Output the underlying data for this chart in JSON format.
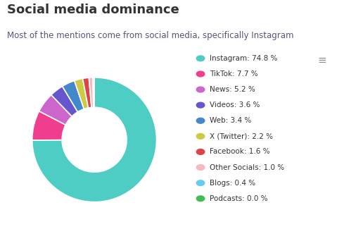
{
  "title": "Social media dominance",
  "subtitle": "Most of the mentions come from social media, specifically Instagram",
  "labels": [
    "Instagram",
    "TikTok",
    "News",
    "Videos",
    "Web",
    "X (Twitter)",
    "Facebook",
    "Other Socials",
    "Blogs",
    "Podcasts"
  ],
  "values": [
    74.8,
    7.7,
    5.2,
    3.6,
    3.4,
    2.2,
    1.6,
    1.0,
    0.4,
    0.0
  ],
  "colors": [
    "#4ECDC4",
    "#F03E8F",
    "#CC66CC",
    "#6655CC",
    "#4488CC",
    "#CCCC44",
    "#DD4444",
    "#F9B8C0",
    "#66CCEE",
    "#44BB55"
  ],
  "legend_labels": [
    "Instagram: 74.8 %",
    "TikTok: 7.7 %",
    "News: 5.2 %",
    "Videos: 3.6 %",
    "Web: 3.4 %",
    "X (Twitter): 2.2 %",
    "Facebook: 1.6 %",
    "Other Socials: 1.0 %",
    "Blogs: 0.4 %",
    "Podcasts: 0.0 %"
  ],
  "background_color": "#ffffff",
  "title_fontsize": 13,
  "subtitle_fontsize": 8.5,
  "legend_fontsize": 7.5,
  "text_color": "#333333",
  "subtitle_color": "#555577"
}
